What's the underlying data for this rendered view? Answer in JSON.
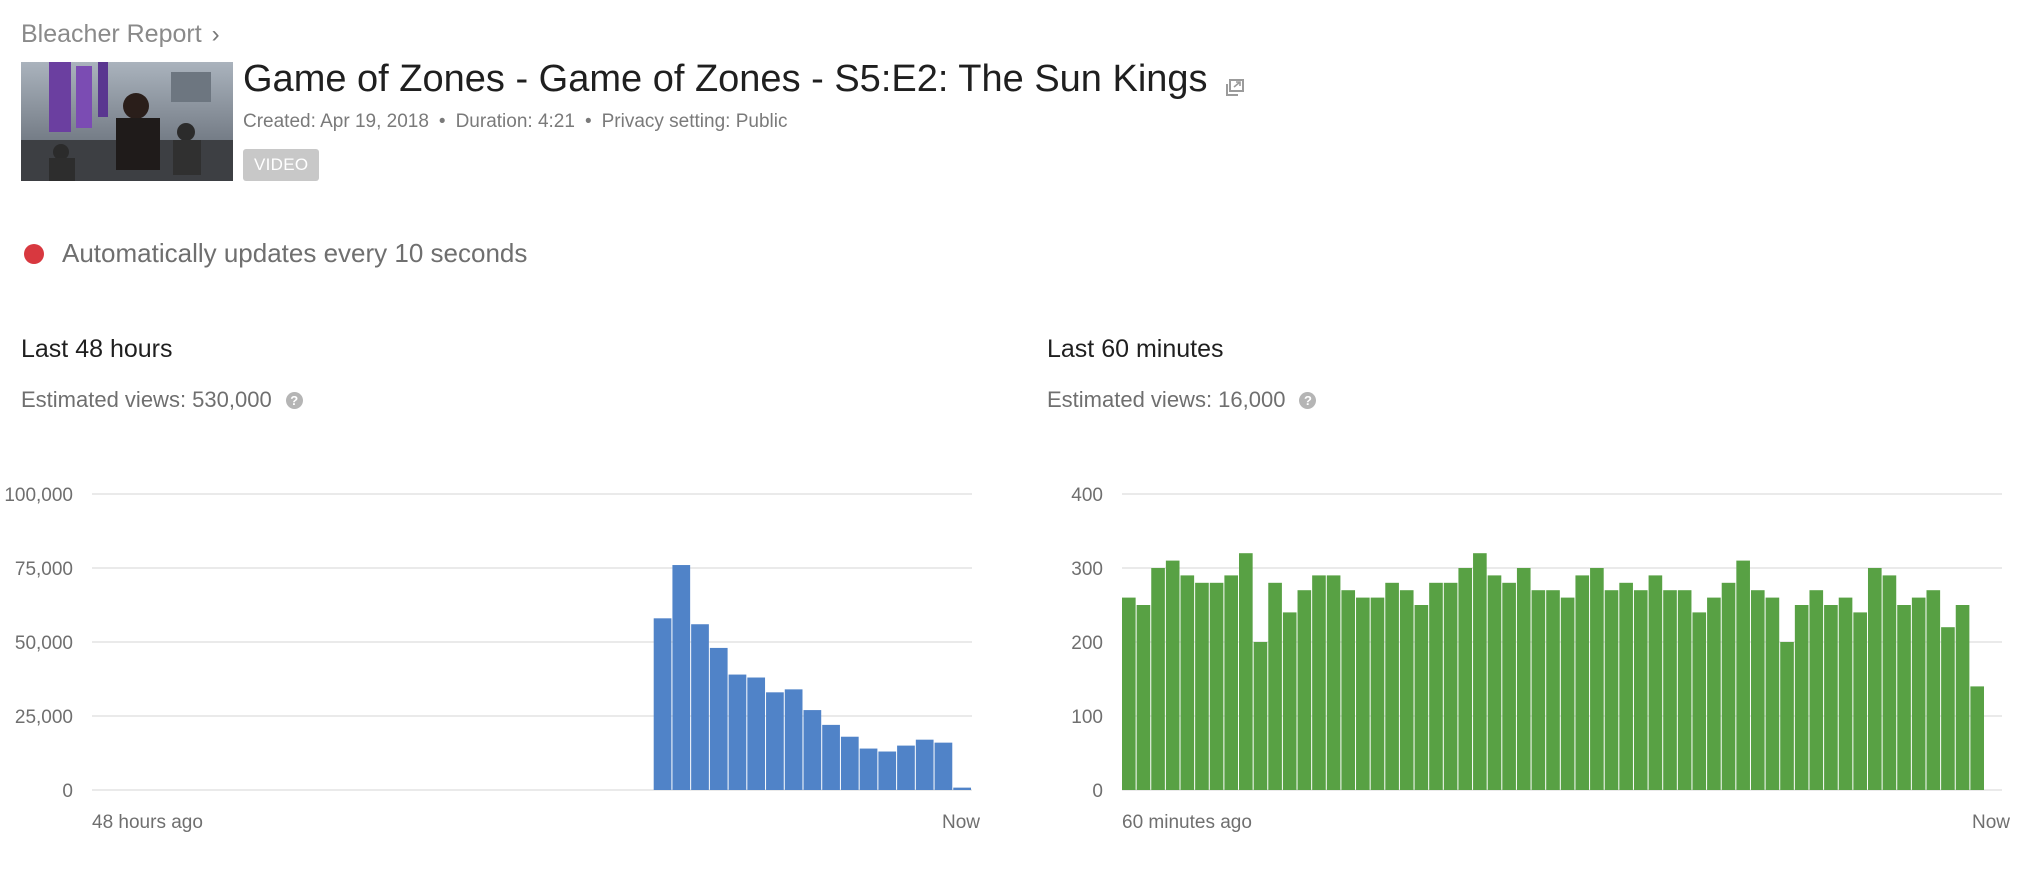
{
  "breadcrumb": {
    "channel": "Bleacher Report",
    "chevron": "›"
  },
  "video": {
    "title": "Game of Zones - Game of Zones - S5:E2: The Sun Kings",
    "created": "Created: Apr 19, 2018",
    "duration": "Duration: 4:21",
    "privacy": "Privacy setting: Public",
    "separator": "•",
    "badge": "VIDEO"
  },
  "live": {
    "text": "Automatically updates every 10 seconds",
    "dot_color": "#d8383f"
  },
  "help_glyph": "?",
  "chart_data": [
    {
      "type": "bar",
      "title": "Last 48 hours",
      "subtitle": "Estimated views: 530,000",
      "color": "#5083c8",
      "ylim": [
        0,
        100000
      ],
      "yticks": [
        0,
        25000,
        50000,
        75000,
        100000
      ],
      "ytick_labels": [
        "0",
        "25,000",
        "50,000",
        "75,000",
        "100,000"
      ],
      "x_start_label": "48 hours ago",
      "x_end_label": "Now",
      "grid": true,
      "values": [
        0,
        0,
        0,
        0,
        0,
        0,
        0,
        0,
        0,
        0,
        0,
        0,
        0,
        0,
        0,
        0,
        0,
        0,
        0,
        0,
        0,
        0,
        0,
        0,
        0,
        0,
        0,
        0,
        0,
        0,
        58000,
        76000,
        56000,
        48000,
        39000,
        38000,
        33000,
        34000,
        27000,
        22000,
        18000,
        14000,
        13000,
        15000,
        17000,
        16000,
        800
      ]
    },
    {
      "type": "bar",
      "title": "Last 60 minutes",
      "subtitle": "Estimated views: 16,000",
      "color": "#58a144",
      "ylim": [
        0,
        400
      ],
      "yticks": [
        0,
        100,
        200,
        300,
        400
      ],
      "ytick_labels": [
        "0",
        "100",
        "200",
        "300",
        "400"
      ],
      "x_start_label": "60 minutes ago",
      "x_end_label": "Now",
      "grid": true,
      "values": [
        260,
        250,
        300,
        310,
        290,
        280,
        280,
        290,
        320,
        200,
        280,
        240,
        270,
        290,
        290,
        270,
        260,
        260,
        280,
        270,
        250,
        280,
        280,
        300,
        320,
        290,
        280,
        300,
        270,
        270,
        260,
        290,
        300,
        270,
        280,
        270,
        290,
        270,
        270,
        240,
        260,
        280,
        310,
        270,
        260,
        200,
        250,
        270,
        250,
        260,
        240,
        300,
        290,
        250,
        260,
        270,
        220,
        250,
        140
      ]
    }
  ]
}
